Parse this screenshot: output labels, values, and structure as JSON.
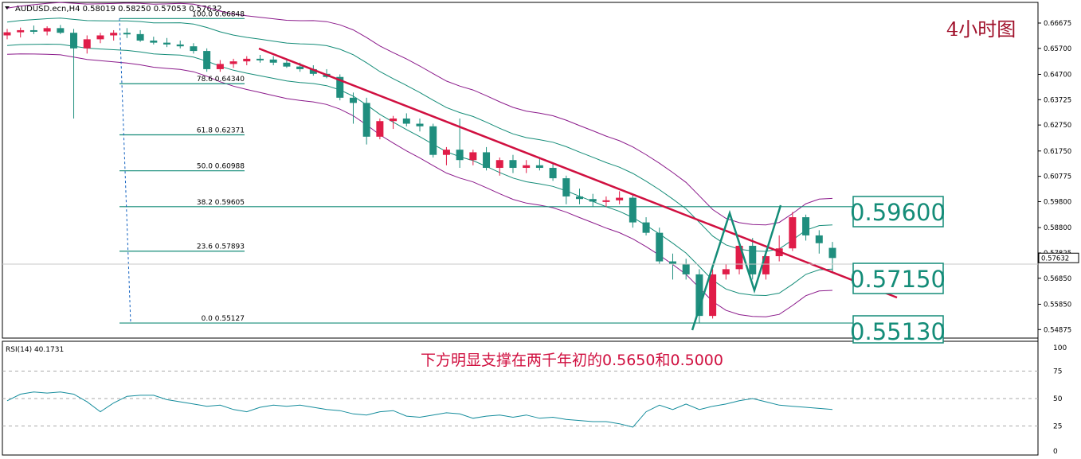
{
  "header": {
    "symbol_line": "AUDUSD.ecn,H4  0.58019 0.58250 0.57053 0.57632",
    "title": "4小时图"
  },
  "annotation": "下方明显支撑在两千年初的0.5650和0.5000",
  "boxes": [
    "0.59600",
    "0.57150",
    "0.55130"
  ],
  "fib_levels": [
    {
      "label": "100.0  0.66848",
      "value": 0.66848
    },
    {
      "label": "78.6  0.64340",
      "value": 0.6434
    },
    {
      "label": "61.8  0.62371",
      "value": 0.62371
    },
    {
      "label": "50.0  0.60988",
      "value": 0.60988
    },
    {
      "label": "38.2  0.59605",
      "value": 0.59605
    },
    {
      "label": "23.6  0.57893",
      "value": 0.57893
    },
    {
      "label": "0.0  0.55127",
      "value": 0.55127
    }
  ],
  "price_axis": [
    "0.66675",
    "0.65700",
    "0.64700",
    "0.63725",
    "0.62750",
    "0.61750",
    "0.60775",
    "0.59800",
    "0.58800",
    "0.57825",
    "0.56850",
    "0.55850",
    "0.54875"
  ],
  "current_price": "0.57632",
  "rsi": {
    "label": "RSI(14) 40.1731",
    "axis": [
      "100",
      "75",
      "50",
      "25",
      "0"
    ],
    "values": [
      48,
      54,
      56,
      55,
      56,
      54,
      47,
      38,
      46,
      52,
      53,
      53,
      49,
      47,
      45,
      43,
      44,
      40,
      38,
      42,
      44,
      43,
      44,
      42,
      40,
      39,
      36,
      35,
      38,
      39,
      34,
      33,
      35,
      37,
      36,
      32,
      34,
      35,
      33,
      35,
      32,
      33,
      31,
      30,
      29,
      29,
      27,
      24,
      38,
      44,
      40,
      45,
      40,
      43,
      45,
      48,
      50,
      47,
      44,
      43,
      42,
      41,
      40
    ],
    "levels": [
      75,
      50,
      25
    ]
  },
  "colors": {
    "bull": "#e01c48",
    "bear": "#1f8e7e",
    "channel_outer": "#8b1a8b",
    "channel_inner": "#148c78",
    "trendline": "#d01040",
    "fib": "#148c78",
    "zigzag": "#148c78"
  },
  "chart_data": {
    "type": "candlestick",
    "symbol": "AUDUSD.ecn",
    "timeframe": "H4",
    "ohlc": [
      [
        0.662,
        0.6645,
        0.6605,
        0.6632
      ],
      [
        0.6632,
        0.665,
        0.6612,
        0.664
      ],
      [
        0.664,
        0.6658,
        0.6625,
        0.6635
      ],
      [
        0.6635,
        0.6655,
        0.662,
        0.6648
      ],
      [
        0.6648,
        0.666,
        0.6625,
        0.663
      ],
      [
        0.663,
        0.6645,
        0.63,
        0.657
      ],
      [
        0.657,
        0.662,
        0.655,
        0.6605
      ],
      [
        0.6605,
        0.663,
        0.659,
        0.662
      ],
      [
        0.662,
        0.664,
        0.66,
        0.663
      ],
      [
        0.663,
        0.6648,
        0.661,
        0.6625
      ],
      [
        0.6625,
        0.664,
        0.6595,
        0.66
      ],
      [
        0.66,
        0.6615,
        0.6585,
        0.6592
      ],
      [
        0.6592,
        0.661,
        0.6575,
        0.6585
      ],
      [
        0.6585,
        0.66,
        0.657,
        0.6578
      ],
      [
        0.6578,
        0.659,
        0.655,
        0.656
      ],
      [
        0.656,
        0.657,
        0.648,
        0.649
      ],
      [
        0.649,
        0.6525,
        0.648,
        0.651
      ],
      [
        0.651,
        0.653,
        0.6495,
        0.652
      ],
      [
        0.652,
        0.654,
        0.6505,
        0.653
      ],
      [
        0.653,
        0.6545,
        0.6515,
        0.6527
      ],
      [
        0.6527,
        0.654,
        0.6505,
        0.6515
      ],
      [
        0.6515,
        0.653,
        0.6495,
        0.65
      ],
      [
        0.65,
        0.6515,
        0.648,
        0.649
      ],
      [
        0.649,
        0.6505,
        0.6465,
        0.6472
      ],
      [
        0.6472,
        0.649,
        0.6455,
        0.646
      ],
      [
        0.646,
        0.647,
        0.637,
        0.638
      ],
      [
        0.638,
        0.64,
        0.628,
        0.636
      ],
      [
        0.636,
        0.638,
        0.62,
        0.623
      ],
      [
        0.623,
        0.63,
        0.622,
        0.629
      ],
      [
        0.629,
        0.631,
        0.626,
        0.63
      ],
      [
        0.63,
        0.632,
        0.627,
        0.628
      ],
      [
        0.628,
        0.63,
        0.625,
        0.627
      ],
      [
        0.627,
        0.628,
        0.615,
        0.616
      ],
      [
        0.616,
        0.619,
        0.612,
        0.618
      ],
      [
        0.618,
        0.63,
        0.611,
        0.614
      ],
      [
        0.614,
        0.618,
        0.612,
        0.617
      ],
      [
        0.617,
        0.619,
        0.61,
        0.611
      ],
      [
        0.611,
        0.615,
        0.608,
        0.614
      ],
      [
        0.614,
        0.616,
        0.609,
        0.611
      ],
      [
        0.611,
        0.614,
        0.609,
        0.612
      ],
      [
        0.612,
        0.615,
        0.61,
        0.611
      ],
      [
        0.611,
        0.613,
        0.606,
        0.607
      ],
      [
        0.607,
        0.608,
        0.597,
        0.6
      ],
      [
        0.6,
        0.603,
        0.597,
        0.599
      ],
      [
        0.599,
        0.601,
        0.596,
        0.598
      ],
      [
        0.598,
        0.6,
        0.596,
        0.5985
      ],
      [
        0.5985,
        0.602,
        0.597,
        0.5995
      ],
      [
        0.5995,
        0.601,
        0.588,
        0.59
      ],
      [
        0.59,
        0.592,
        0.585,
        0.586
      ],
      [
        0.586,
        0.588,
        0.574,
        0.575
      ],
      [
        0.575,
        0.578,
        0.568,
        0.574
      ],
      [
        0.574,
        0.576,
        0.568,
        0.57
      ],
      [
        0.57,
        0.572,
        0.5513,
        0.554
      ],
      [
        0.554,
        0.572,
        0.553,
        0.57
      ],
      [
        0.57,
        0.574,
        0.568,
        0.572
      ],
      [
        0.572,
        0.583,
        0.57,
        0.581
      ],
      [
        0.581,
        0.584,
        0.568,
        0.57
      ],
      [
        0.57,
        0.578,
        0.568,
        0.577
      ],
      [
        0.577,
        0.585,
        0.575,
        0.58
      ],
      [
        0.58,
        0.594,
        0.579,
        0.592
      ],
      [
        0.592,
        0.593,
        0.583,
        0.585
      ],
      [
        0.585,
        0.587,
        0.578,
        0.582
      ],
      [
        0.5802,
        0.5825,
        0.5705,
        0.5763
      ]
    ],
    "ylim": [
      0.547,
      0.6695
    ],
    "rsi_ylim": [
      0,
      100
    ]
  }
}
